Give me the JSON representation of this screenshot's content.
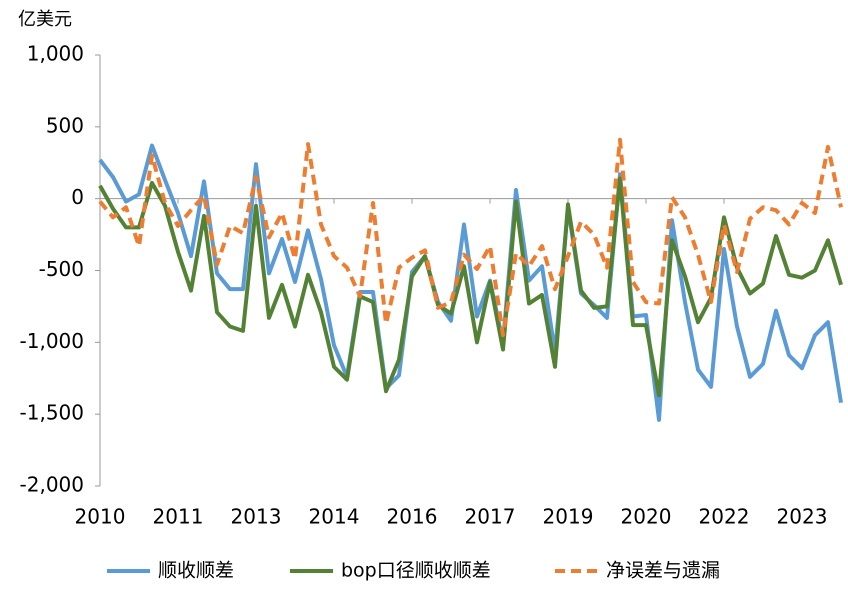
{
  "chart_data": {
    "type": "line",
    "unit_label": "亿美元",
    "categories": [
      "2010",
      null,
      null,
      null,
      null,
      null,
      "2011",
      null,
      null,
      null,
      null,
      null,
      "2013",
      null,
      null,
      null,
      null,
      null,
      "2014",
      null,
      null,
      null,
      null,
      null,
      "2016",
      null,
      null,
      null,
      null,
      null,
      "2017",
      null,
      null,
      null,
      null,
      null,
      "2019",
      null,
      null,
      null,
      null,
      null,
      "2020",
      null,
      null,
      null,
      null,
      null,
      "2022",
      null,
      null,
      null,
      null,
      null,
      "2023",
      null,
      null,
      null
    ],
    "ylim": [
      -2000,
      1000
    ],
    "yticks": [
      {
        "value": 1000,
        "label": "1,000"
      },
      500,
      0,
      -500,
      {
        "value": -1000,
        "label": "-1,000"
      },
      {
        "value": -1500,
        "label": "-1,500"
      },
      {
        "value": -2000,
        "label": "-2,000"
      }
    ],
    "grid": false,
    "legend": "bottom",
    "series": [
      {
        "name": "顺收顺差",
        "color": "#5b9bd5",
        "line_style": "solid",
        "values": [
          270,
          150,
          -20,
          30,
          370,
          130,
          -100,
          -400,
          120,
          -520,
          -630,
          -630,
          240,
          -520,
          -280,
          -580,
          -220,
          -560,
          -1020,
          -1240,
          -650,
          -650,
          -1320,
          -1230,
          -510,
          -400,
          -720,
          -850,
          -180,
          -820,
          -570,
          -1000,
          60,
          -570,
          -470,
          -1070,
          -60,
          -660,
          -740,
          -830,
          170,
          -820,
          -810,
          -1540,
          -150,
          -720,
          -1190,
          -1310,
          -350,
          -890,
          -1240,
          -1150,
          -780,
          -1090,
          -1180,
          -950,
          -860,
          -1420
        ]
      },
      {
        "name": "bop口径顺收顺差",
        "color": "#548235",
        "line_style": "solid",
        "values": [
          90,
          -70,
          -200,
          -200,
          110,
          -50,
          -370,
          -640,
          -120,
          -790,
          -890,
          -920,
          -50,
          -830,
          -600,
          -890,
          -530,
          -790,
          -1170,
          -1260,
          -680,
          -720,
          -1340,
          -1120,
          -540,
          -400,
          -740,
          -800,
          -470,
          -1000,
          -580,
          -1050,
          -20,
          -730,
          -670,
          -1170,
          -40,
          -640,
          -760,
          -750,
          140,
          -880,
          -880,
          -1370,
          -290,
          -540,
          -860,
          -690,
          -130,
          -480,
          -660,
          -590,
          -260,
          -530,
          -550,
          -500,
          -290,
          -600
        ]
      },
      {
        "name": "净误差与遗漏",
        "color": "#ed7d31",
        "line_style": "dashed",
        "values": [
          -20,
          -130,
          -60,
          -330,
          300,
          -30,
          -190,
          -80,
          20,
          -460,
          -190,
          -240,
          150,
          -270,
          -100,
          -420,
          380,
          -180,
          -400,
          -480,
          -680,
          -30,
          -870,
          -480,
          -410,
          -360,
          -760,
          -720,
          -390,
          -490,
          -330,
          -950,
          -380,
          -470,
          -330,
          -630,
          -400,
          -160,
          -250,
          -480,
          410,
          -580,
          -720,
          -730,
          10,
          -130,
          -390,
          -720,
          -180,
          -510,
          -140,
          -60,
          -80,
          -180,
          -30,
          -100,
          360,
          -60
        ]
      }
    ]
  }
}
